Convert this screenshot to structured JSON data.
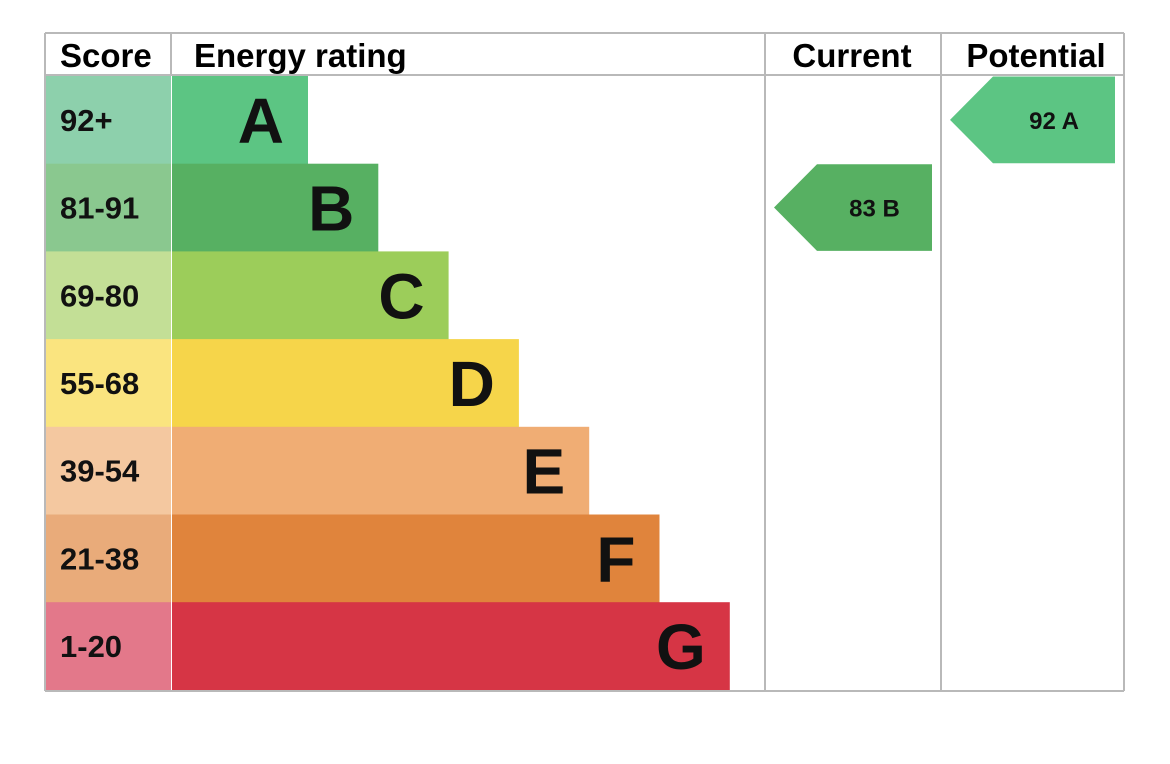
{
  "chart_data": {
    "type": "bar",
    "headers": {
      "score": "Score",
      "rating": "Energy rating",
      "current": "Current",
      "potential": "Potential"
    },
    "bands": [
      {
        "score": "92+",
        "letter": "A",
        "color": "#5cc583",
        "score_bg": "#8dd0ac"
      },
      {
        "score": "81-91",
        "letter": "B",
        "color": "#57b062",
        "score_bg": "#8ac88f"
      },
      {
        "score": "69-80",
        "letter": "C",
        "color": "#9ccd5a",
        "score_bg": "#c3df96"
      },
      {
        "score": "55-68",
        "letter": "D",
        "color": "#f6d54a",
        "score_bg": "#fae47f"
      },
      {
        "score": "39-54",
        "letter": "E",
        "color": "#f0ad74",
        "score_bg": "#f4c8a0"
      },
      {
        "score": "21-38",
        "letter": "F",
        "color": "#e0843c",
        "score_bg": "#e9ab7a"
      },
      {
        "score": "1-20",
        "letter": "G",
        "color": "#d63545",
        "score_bg": "#e3788a"
      }
    ],
    "current": {
      "value": 83,
      "letter": "B",
      "label": "83  B",
      "color": "#57b062"
    },
    "potential": {
      "value": 92,
      "letter": "A",
      "label": "92  A",
      "color": "#5cc583"
    }
  }
}
